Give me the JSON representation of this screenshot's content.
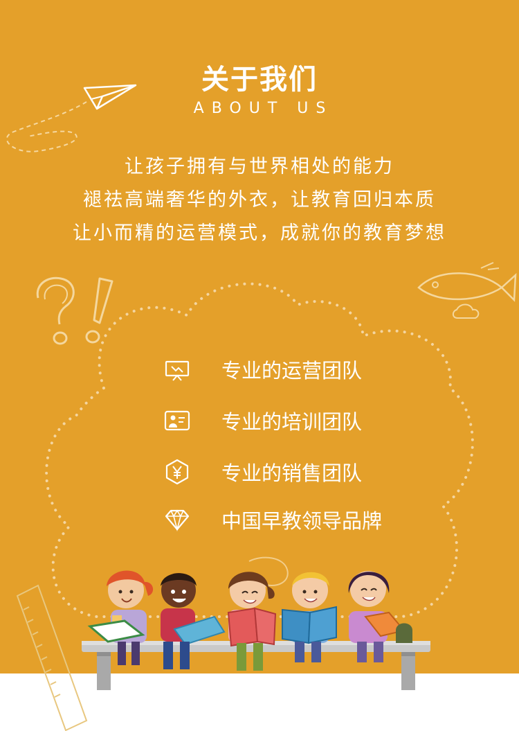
{
  "header": {
    "title": "关于我们",
    "subtitle": "ABOUT US"
  },
  "intro": {
    "lines": [
      "让孩子拥有与世界相处的能力",
      "褪祛高端奢华的外衣，让教育回归本质",
      "让小而精的运营模式，成就你的教育梦想"
    ]
  },
  "features": [
    {
      "icon": "presentation-board-icon",
      "label": "专业的运营团队"
    },
    {
      "icon": "trainer-person-icon",
      "label": "专业的培训团队"
    },
    {
      "icon": "yen-coin-icon",
      "label": "专业的销售团队"
    },
    {
      "icon": "diamond-icon",
      "label": "中国早教领导品牌"
    }
  ],
  "colors": {
    "background": "#e4a02a",
    "text": "#ffffff",
    "bottom_band": "#ffffff"
  }
}
